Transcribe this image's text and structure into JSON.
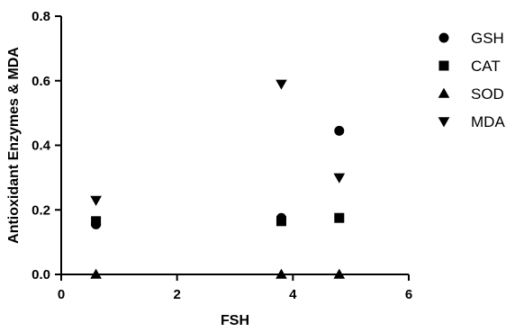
{
  "chart_data": {
    "type": "scatter",
    "title": "",
    "xlabel": "FSH",
    "ylabel": "Antioxidant Enzymes & MDA",
    "xlim": [
      0,
      6
    ],
    "ylim": [
      0.0,
      0.8
    ],
    "x_ticks": [
      "0",
      "2",
      "4",
      "6"
    ],
    "y_ticks": [
      "0.0",
      "0.2",
      "0.4",
      "0.6",
      "0.8"
    ],
    "grid": false,
    "legend_position": "top-right",
    "series": [
      {
        "name": "GSH",
        "marker": "circle",
        "points": [
          [
            0.6,
            0.155
          ],
          [
            3.8,
            0.175
          ],
          [
            4.8,
            0.445
          ]
        ]
      },
      {
        "name": "CAT",
        "marker": "square",
        "points": [
          [
            0.6,
            0.165
          ],
          [
            3.8,
            0.165
          ],
          [
            4.8,
            0.175
          ]
        ]
      },
      {
        "name": "SOD",
        "marker": "triangle-up",
        "points": [
          [
            0.6,
            0.0
          ],
          [
            3.8,
            0.0
          ],
          [
            4.8,
            0.0
          ]
        ]
      },
      {
        "name": "MDA",
        "marker": "triangle-down",
        "points": [
          [
            0.6,
            0.23
          ],
          [
            3.8,
            0.59
          ],
          [
            4.8,
            0.3
          ]
        ]
      }
    ]
  },
  "colors": {
    "marker": "#000000",
    "axis": "#000000",
    "background": "#ffffff"
  }
}
